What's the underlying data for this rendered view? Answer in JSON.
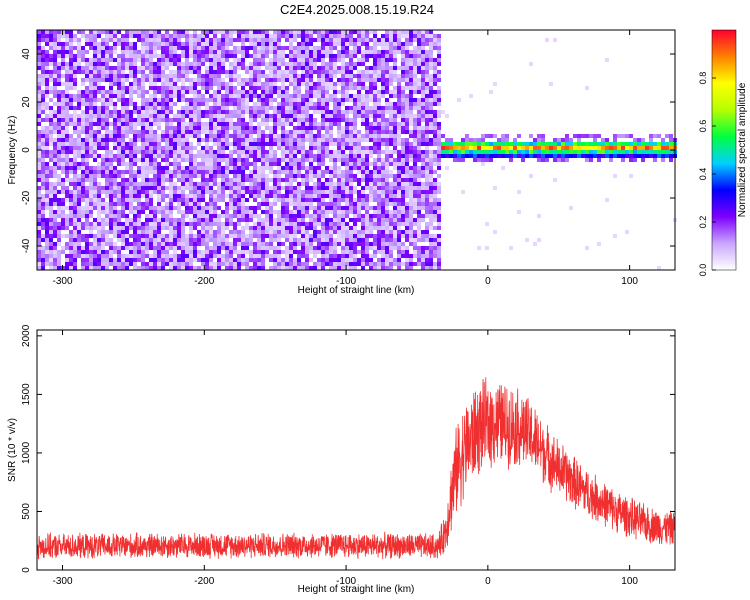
{
  "title": "C2E4.2025.008.15.19.R24",
  "chart_data": [
    {
      "type": "heatmap",
      "title": "",
      "xlabel": "Height of straight line (km)",
      "ylabel": "Frequency (Hz)",
      "xlim": [
        -318,
        132
      ],
      "ylim": [
        -50,
        50
      ],
      "x_ticks": [
        -300,
        -200,
        -100,
        0,
        100
      ],
      "y_ticks": [
        -40,
        -20,
        0,
        20,
        40
      ],
      "noise_region": {
        "x_from": -318,
        "x_to": -32,
        "freq_range": [
          -50,
          50
        ],
        "amplitude_approx": 0.1
      },
      "signal_region": {
        "x_from": -32,
        "x_to": 132,
        "center_freq": 0.5,
        "bandwidth": 3,
        "peak_amplitude": 0.95
      },
      "colorbar": {
        "label": "Normalized spectral amplitude",
        "range": [
          0,
          1
        ],
        "ticks": [
          0.0,
          0.2,
          0.4,
          0.6,
          0.8
        ],
        "colors": [
          "#ffffff",
          "#c9a6ff",
          "#7d00ff",
          "#0000ff",
          "#00d0ff",
          "#00ff40",
          "#b6ff00",
          "#ffff00",
          "#ff8000",
          "#ff0030"
        ]
      }
    },
    {
      "type": "line",
      "title": "",
      "xlabel": "Height of straight line (km)",
      "ylabel": "SNR (10 * v/v)",
      "xlim": [
        -318,
        132
      ],
      "ylim": [
        0,
        2050
      ],
      "x_ticks": [
        -300,
        -200,
        -100,
        0,
        100
      ],
      "y_ticks": [
        0,
        500,
        1000,
        1500,
        2000
      ],
      "series_color": "#f03030",
      "x": [
        -318,
        -250,
        -200,
        -150,
        -100,
        -50,
        -35,
        -30,
        -25,
        -20,
        -15,
        -10,
        -5,
        0,
        5,
        10,
        15,
        20,
        30,
        40,
        50,
        60,
        70,
        80,
        90,
        100,
        110,
        120,
        132
      ],
      "y": [
        200,
        205,
        210,
        210,
        210,
        205,
        200,
        320,
        700,
        950,
        1050,
        1150,
        1220,
        1250,
        1260,
        1250,
        1240,
        1230,
        1150,
        1000,
        870,
        760,
        660,
        580,
        510,
        450,
        400,
        370,
        350
      ],
      "noise_amplitude": [
        120,
        120,
        120,
        120,
        120,
        120,
        120,
        200,
        380,
        450,
        450,
        450,
        430,
        420,
        420,
        400,
        390,
        380,
        340,
        300,
        270,
        250,
        230,
        210,
        200,
        190,
        180,
        170,
        160
      ]
    }
  ]
}
